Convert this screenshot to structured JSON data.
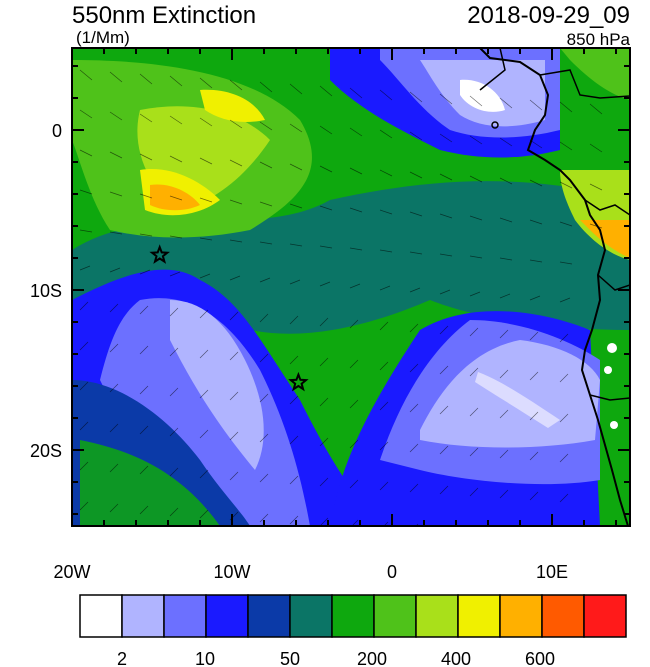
{
  "header": {
    "title": "550nm Extinction",
    "units": "(1/Mm)",
    "datetime": "2018-09-29_09",
    "level": "850 hPa"
  },
  "axes": {
    "lat_labels": [
      "0",
      "10S",
      "20S"
    ],
    "lon_labels": [
      "20W",
      "10W",
      "0",
      "10E"
    ]
  },
  "colorbar": {
    "colors": [
      "#ffffff",
      "#b0b4ff",
      "#6c70ff",
      "#1a1aff",
      "#0b3aa8",
      "#0b7566",
      "#0ea80e",
      "#4fc21a",
      "#a9e01a",
      "#f0f000",
      "#ffb000",
      "#ff5a00",
      "#ff1a1a"
    ],
    "labels": [
      "2",
      "10",
      "50",
      "200",
      "400",
      "600"
    ]
  },
  "markers": [
    {
      "name": "star-1",
      "lon": -14.5,
      "lat": -8.0
    },
    {
      "name": "star-2",
      "lon": -5.8,
      "lat": -16.0
    }
  ],
  "chart_data": {
    "type": "heatmap",
    "title": "550nm Extinction",
    "units": "(1/Mm)",
    "datetime": "2018-09-29_09",
    "level": "850 hPa",
    "lon_range": [
      -20,
      15
    ],
    "lat_range": [
      -25,
      5
    ],
    "lon_ticks": [
      -20,
      -10,
      0,
      10
    ],
    "lat_ticks": [
      0,
      -10,
      -20
    ],
    "colorbar_labels": [
      2,
      10,
      50,
      200,
      400,
      600
    ],
    "markers": [
      {
        "lon": -14.5,
        "lat": -8.0
      },
      {
        "lon": -5.8,
        "lat": -16.0
      }
    ]
  }
}
